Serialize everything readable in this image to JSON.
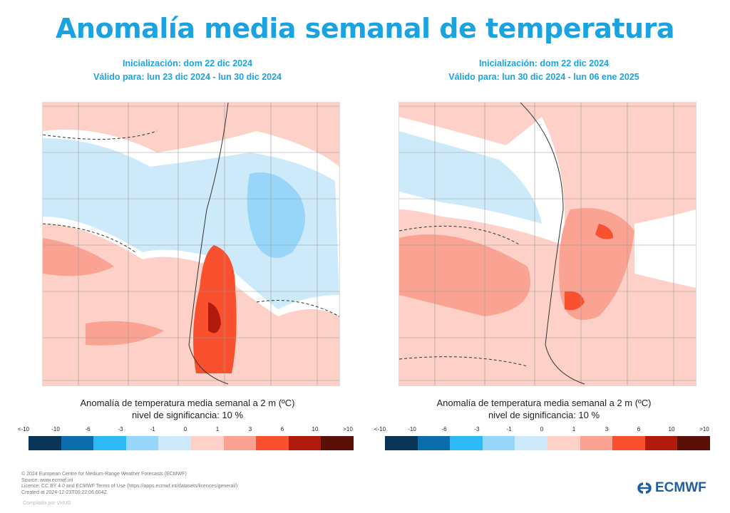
{
  "title": "Anomalía media semanal de temperatura",
  "panels": [
    {
      "init": "Inicialización: dom 22 dic 2024",
      "valid": "Válido para: lun 23 dic 2024 - lun 30 dic 2024",
      "caption": "Anomalía de temperatura media semanal a 2 m (ºC)",
      "significance": "nivel de significancia: 10 %"
    },
    {
      "init": "Inicialización: dom 22 dic 2024",
      "valid": "Válido para: lun 30 dic 2024 - lun 06 ene 2025",
      "caption": "Anomalía de temperatura media semanal a 2 m (ºC)",
      "significance": "nivel de significancia: 10 %"
    }
  ],
  "legend": {
    "ticks": [
      "<-10",
      "-10",
      "-6",
      "-3",
      "-1",
      "0",
      "1",
      "3",
      "6",
      "10",
      ">10"
    ],
    "colors": [
      "#0b3556",
      "#0b6dab",
      "#2db8f6",
      "#97d6f8",
      "#cdeafa",
      "#fdd1c7",
      "#fba392",
      "#f9502f",
      "#b21a0b",
      "#5a0f07"
    ]
  },
  "footer": {
    "lines": [
      "© 2024 European Centre for Medium-Range Weather Forecasts (ECMWF)",
      "Source: www.ecmwf.int",
      "Licence: CC BY 4.0 and ECMWF Terms of Use (https://apps.ecmwf.int/datasets/licences/general/)",
      "Created at 2024-12-23T00:22:06.604Z"
    ],
    "compiled": "Compilado por VHUG",
    "logo": "ECMWF"
  }
}
